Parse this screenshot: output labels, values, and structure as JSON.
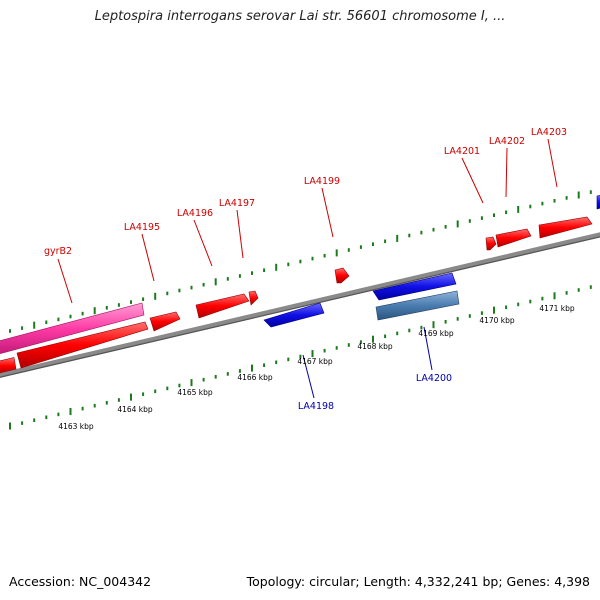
{
  "title": "Leptospira interrogans serovar Lai str. 56601 chromosome I, ...",
  "footer": {
    "accession": "Accession: NC_004342",
    "summary": "Topology: circular; Length: 4,332,241 bp; Genes: 4,398"
  },
  "colors": {
    "background": "#ffffff",
    "backbone": "#888888",
    "tick": "#1c7a1c",
    "forward_gene": "#ff0000",
    "reverse_gene": "#1010e6",
    "forward_gene_highlight": "#ff3aa5",
    "reverse_gene_highlight": "#4a7cb0",
    "forward_label": "#cc0000",
    "reverse_label": "#0000aa",
    "ruler_label": "#000000"
  },
  "ruler": {
    "labels": [
      "4163 kbp",
      "4164 kbp",
      "4165 kbp",
      "4166 kbp",
      "4167 kbp",
      "4168 kbp",
      "4169 kbp",
      "4170 kbp",
      "4171 kbp"
    ]
  },
  "genes": {
    "forward": [
      {
        "label": "gyrB2",
        "highlight": true
      },
      {
        "label": "LA4195",
        "highlight": false
      },
      {
        "label": "LA4196",
        "highlight": false
      },
      {
        "label": "LA4197",
        "highlight": false
      },
      {
        "label": "LA4199",
        "highlight": false
      },
      {
        "label": "LA4201",
        "highlight": false
      },
      {
        "label": "LA4202",
        "highlight": false
      },
      {
        "label": "LA4203",
        "highlight": false
      }
    ],
    "reverse": [
      {
        "label": "LA4198",
        "highlight": false
      },
      {
        "label": "LA4200",
        "highlight": true
      }
    ]
  }
}
